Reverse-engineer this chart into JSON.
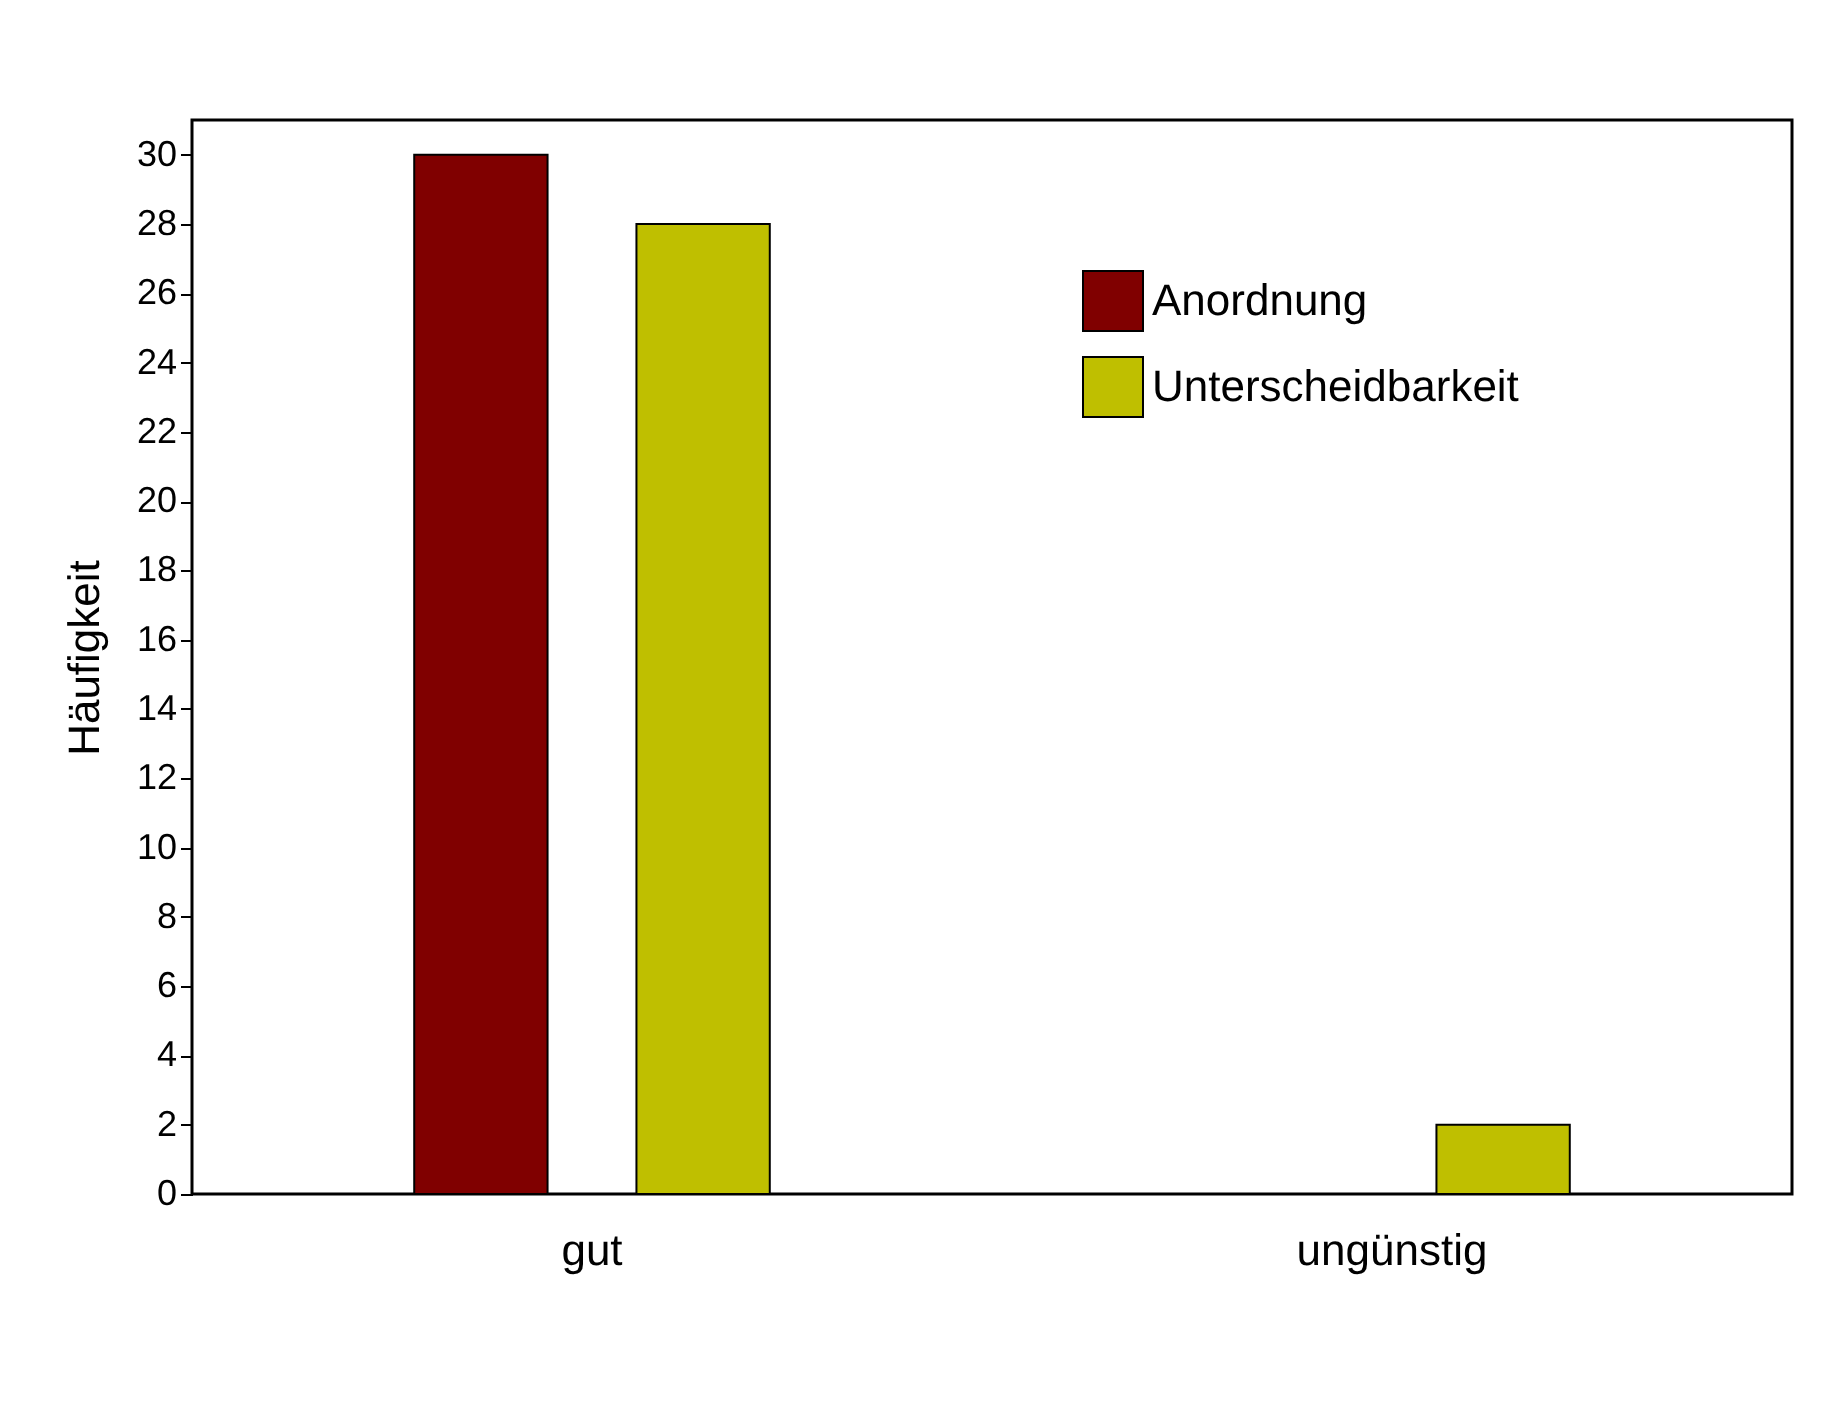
{
  "chart_data": {
    "type": "bar",
    "ylabel": "Häufigkeit",
    "categories": [
      "gut",
      "ungünstig"
    ],
    "series": [
      {
        "name": "Anordnung",
        "color": "#800000",
        "values": [
          30,
          0
        ]
      },
      {
        "name": "Unterscheidbarkeit",
        "color": "#bfbf00",
        "values": [
          28,
          2
        ]
      }
    ],
    "ylim": [
      0,
      31
    ],
    "yticks": [
      0,
      2,
      4,
      6,
      8,
      10,
      12,
      14,
      16,
      18,
      20,
      22,
      24,
      26,
      28,
      30
    ],
    "grid": false,
    "legend": "top right"
  }
}
